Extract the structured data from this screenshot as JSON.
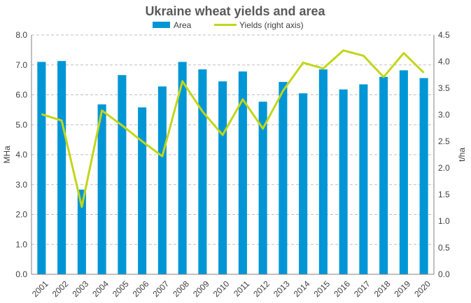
{
  "chart_data": {
    "type": "bar",
    "title": "Ukraine wheat yields and area",
    "categories": [
      "2001",
      "2002",
      "2003",
      "2004",
      "2005",
      "2006",
      "2007",
      "2008",
      "2009",
      "2010",
      "2011",
      "2012",
      "2013",
      "2014",
      "2015",
      "2016",
      "2017",
      "2018",
      "2019",
      "2020"
    ],
    "series": [
      {
        "name": "Area",
        "type": "bar",
        "axis": "left",
        "color": "#0096D6",
        "values": [
          7.1,
          7.13,
          2.83,
          5.68,
          6.66,
          5.58,
          6.28,
          7.1,
          6.85,
          6.45,
          6.78,
          5.77,
          6.43,
          6.05,
          6.85,
          6.18,
          6.35,
          6.6,
          6.82,
          6.56
        ]
      },
      {
        "name": "Yields (right axis)",
        "type": "line",
        "axis": "right",
        "color": "#C2D618",
        "values": [
          3.01,
          2.89,
          1.27,
          3.08,
          2.8,
          2.5,
          2.22,
          3.63,
          3.06,
          2.62,
          3.29,
          2.74,
          3.45,
          3.98,
          3.87,
          4.21,
          4.11,
          3.71,
          4.16,
          3.79
        ]
      }
    ],
    "left_axis": {
      "label": "MHa",
      "min": 0,
      "max": 8,
      "step": 1,
      "decimals": 1
    },
    "right_axis": {
      "label": "t/ha",
      "min": 0,
      "max": 4.5,
      "step": 0.5,
      "decimals": 1
    },
    "grid": true,
    "legend_position": "top"
  }
}
